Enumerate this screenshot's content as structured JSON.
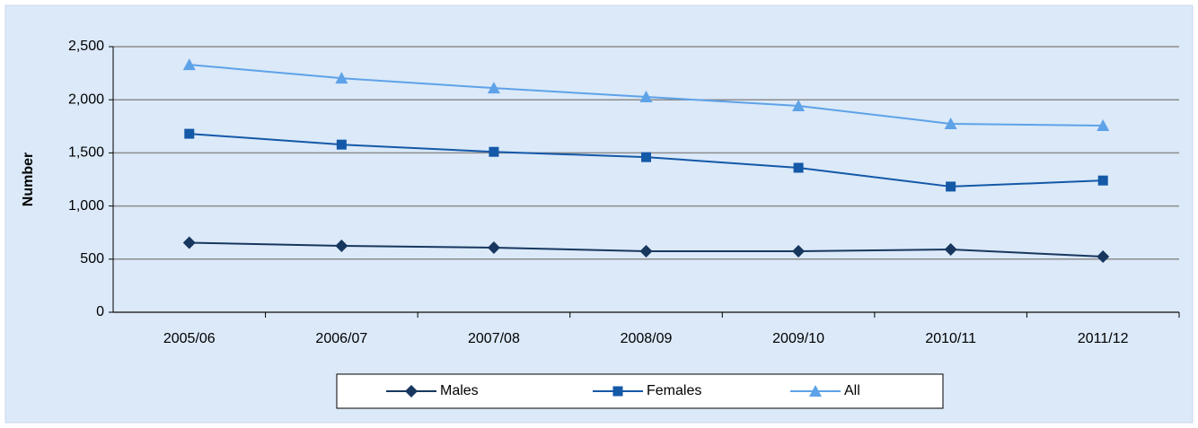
{
  "chart_data": {
    "type": "line",
    "y_label": "Number",
    "categories": [
      "2005/06",
      "2006/07",
      "2007/08",
      "2008/09",
      "2009/10",
      "2010/11",
      "2011/12"
    ],
    "series": [
      {
        "name": "Males",
        "color": "#17375e",
        "marker": "diamond",
        "values": [
          655,
          625,
          608,
          574,
          574,
          591,
          524
        ]
      },
      {
        "name": "Females",
        "color": "#1458a8",
        "marker": "square",
        "values": [
          1680,
          1578,
          1510,
          1460,
          1360,
          1183,
          1240
        ]
      },
      {
        "name": "All",
        "color": "#5ea2e8",
        "marker": "triangle",
        "values": [
          2330,
          2203,
          2110,
          2027,
          1943,
          1774,
          1757
        ]
      }
    ],
    "ylim": [
      0,
      2500
    ],
    "yticks": [
      0,
      500,
      {
        "value": 1000,
        "label": "1,000"
      },
      {
        "value": 1500,
        "label": "1,500"
      },
      {
        "value": 2000,
        "label": "2,000"
      },
      {
        "value": 2500,
        "label": "2,500"
      }
    ],
    "grid": true,
    "legend": "bottom"
  }
}
